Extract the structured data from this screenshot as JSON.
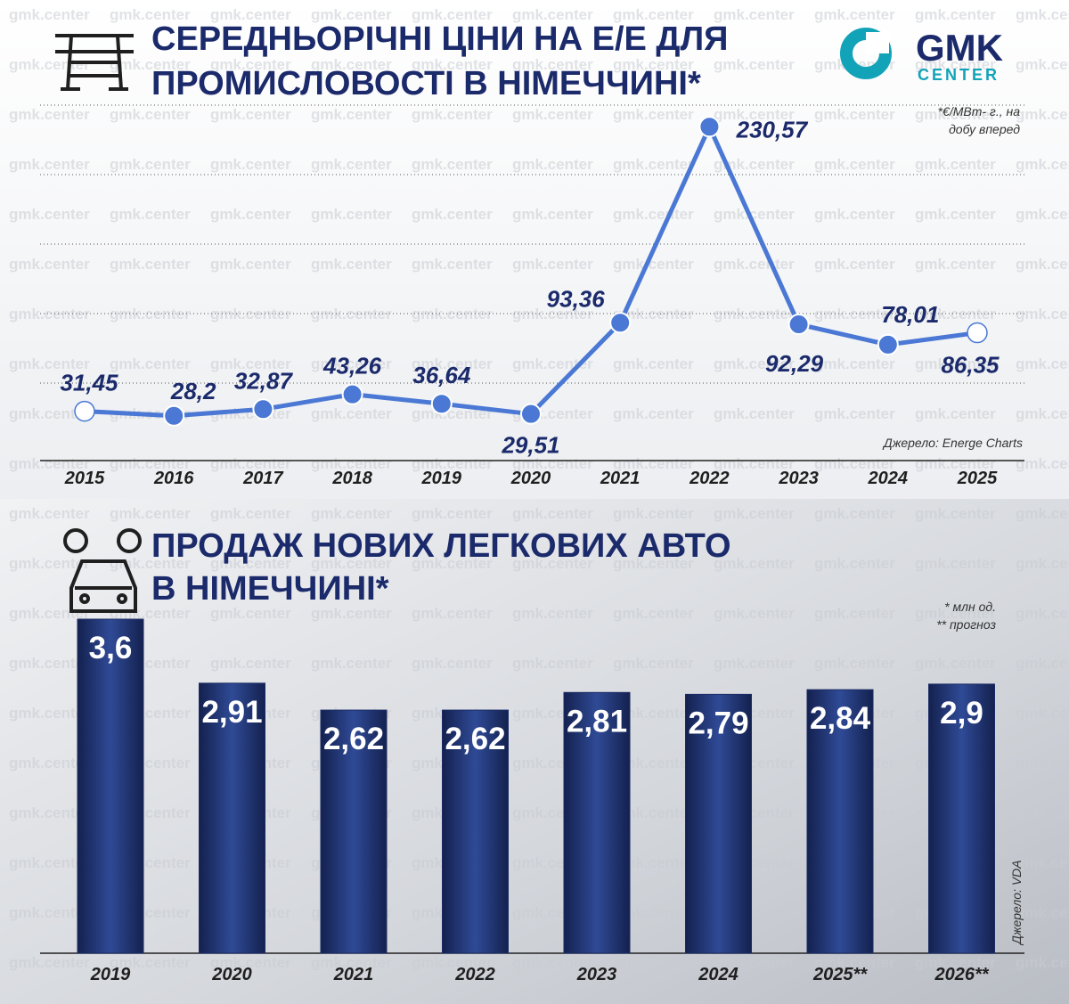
{
  "logo": {
    "name": "GMK",
    "subname": "CENTER"
  },
  "watermark": "gmk.center",
  "chart_data": [
    {
      "type": "line",
      "title": [
        "СЕРЕДНЬОРІЧНІ ЦІНИ НА Е/Е ДЛЯ",
        "ПРОМИСЛОВОСТІ В НІМЕЧЧИНІ*"
      ],
      "note": [
        "*€/МВт- г., на",
        "добу вперед"
      ],
      "source": "Джерело: Energe Charts",
      "categories": [
        "2015",
        "2016",
        "2017",
        "2018",
        "2019",
        "2020",
        "2021",
        "2022",
        "2023",
        "2024",
        "2025"
      ],
      "values": [
        31.45,
        28.2,
        32.87,
        43.26,
        36.64,
        29.51,
        93.36,
        230.57,
        92.29,
        78.01,
        86.35
      ],
      "value_labels": [
        "31,45",
        "28,2",
        "32,87",
        "43,26",
        "36,64",
        "29,51",
        "93,36",
        "230,57",
        "92,29",
        "78,01",
        "86,35"
      ],
      "color": "#4a78d4",
      "ylim": [
        0,
        232
      ]
    },
    {
      "type": "bar",
      "title": [
        "ПРОДАЖ НОВИХ ЛЕГКОВИХ АВТО",
        "В НІМЕЧЧИНІ*"
      ],
      "note": [
        "* млн од.",
        "** прогноз"
      ],
      "source": "Джерело: VDA",
      "categories": [
        "2019",
        "2020",
        "2021",
        "2022",
        "2023",
        "2024",
        "2025**",
        "2026**"
      ],
      "values": [
        3.6,
        2.91,
        2.62,
        2.62,
        2.81,
        2.79,
        2.84,
        2.9
      ],
      "value_labels": [
        "3,6",
        "2,91",
        "2,62",
        "2,62",
        "2,81",
        "2,79",
        "2,84",
        "2,9"
      ],
      "color": "#1b2c66",
      "ylim": [
        0,
        3.6
      ]
    }
  ]
}
